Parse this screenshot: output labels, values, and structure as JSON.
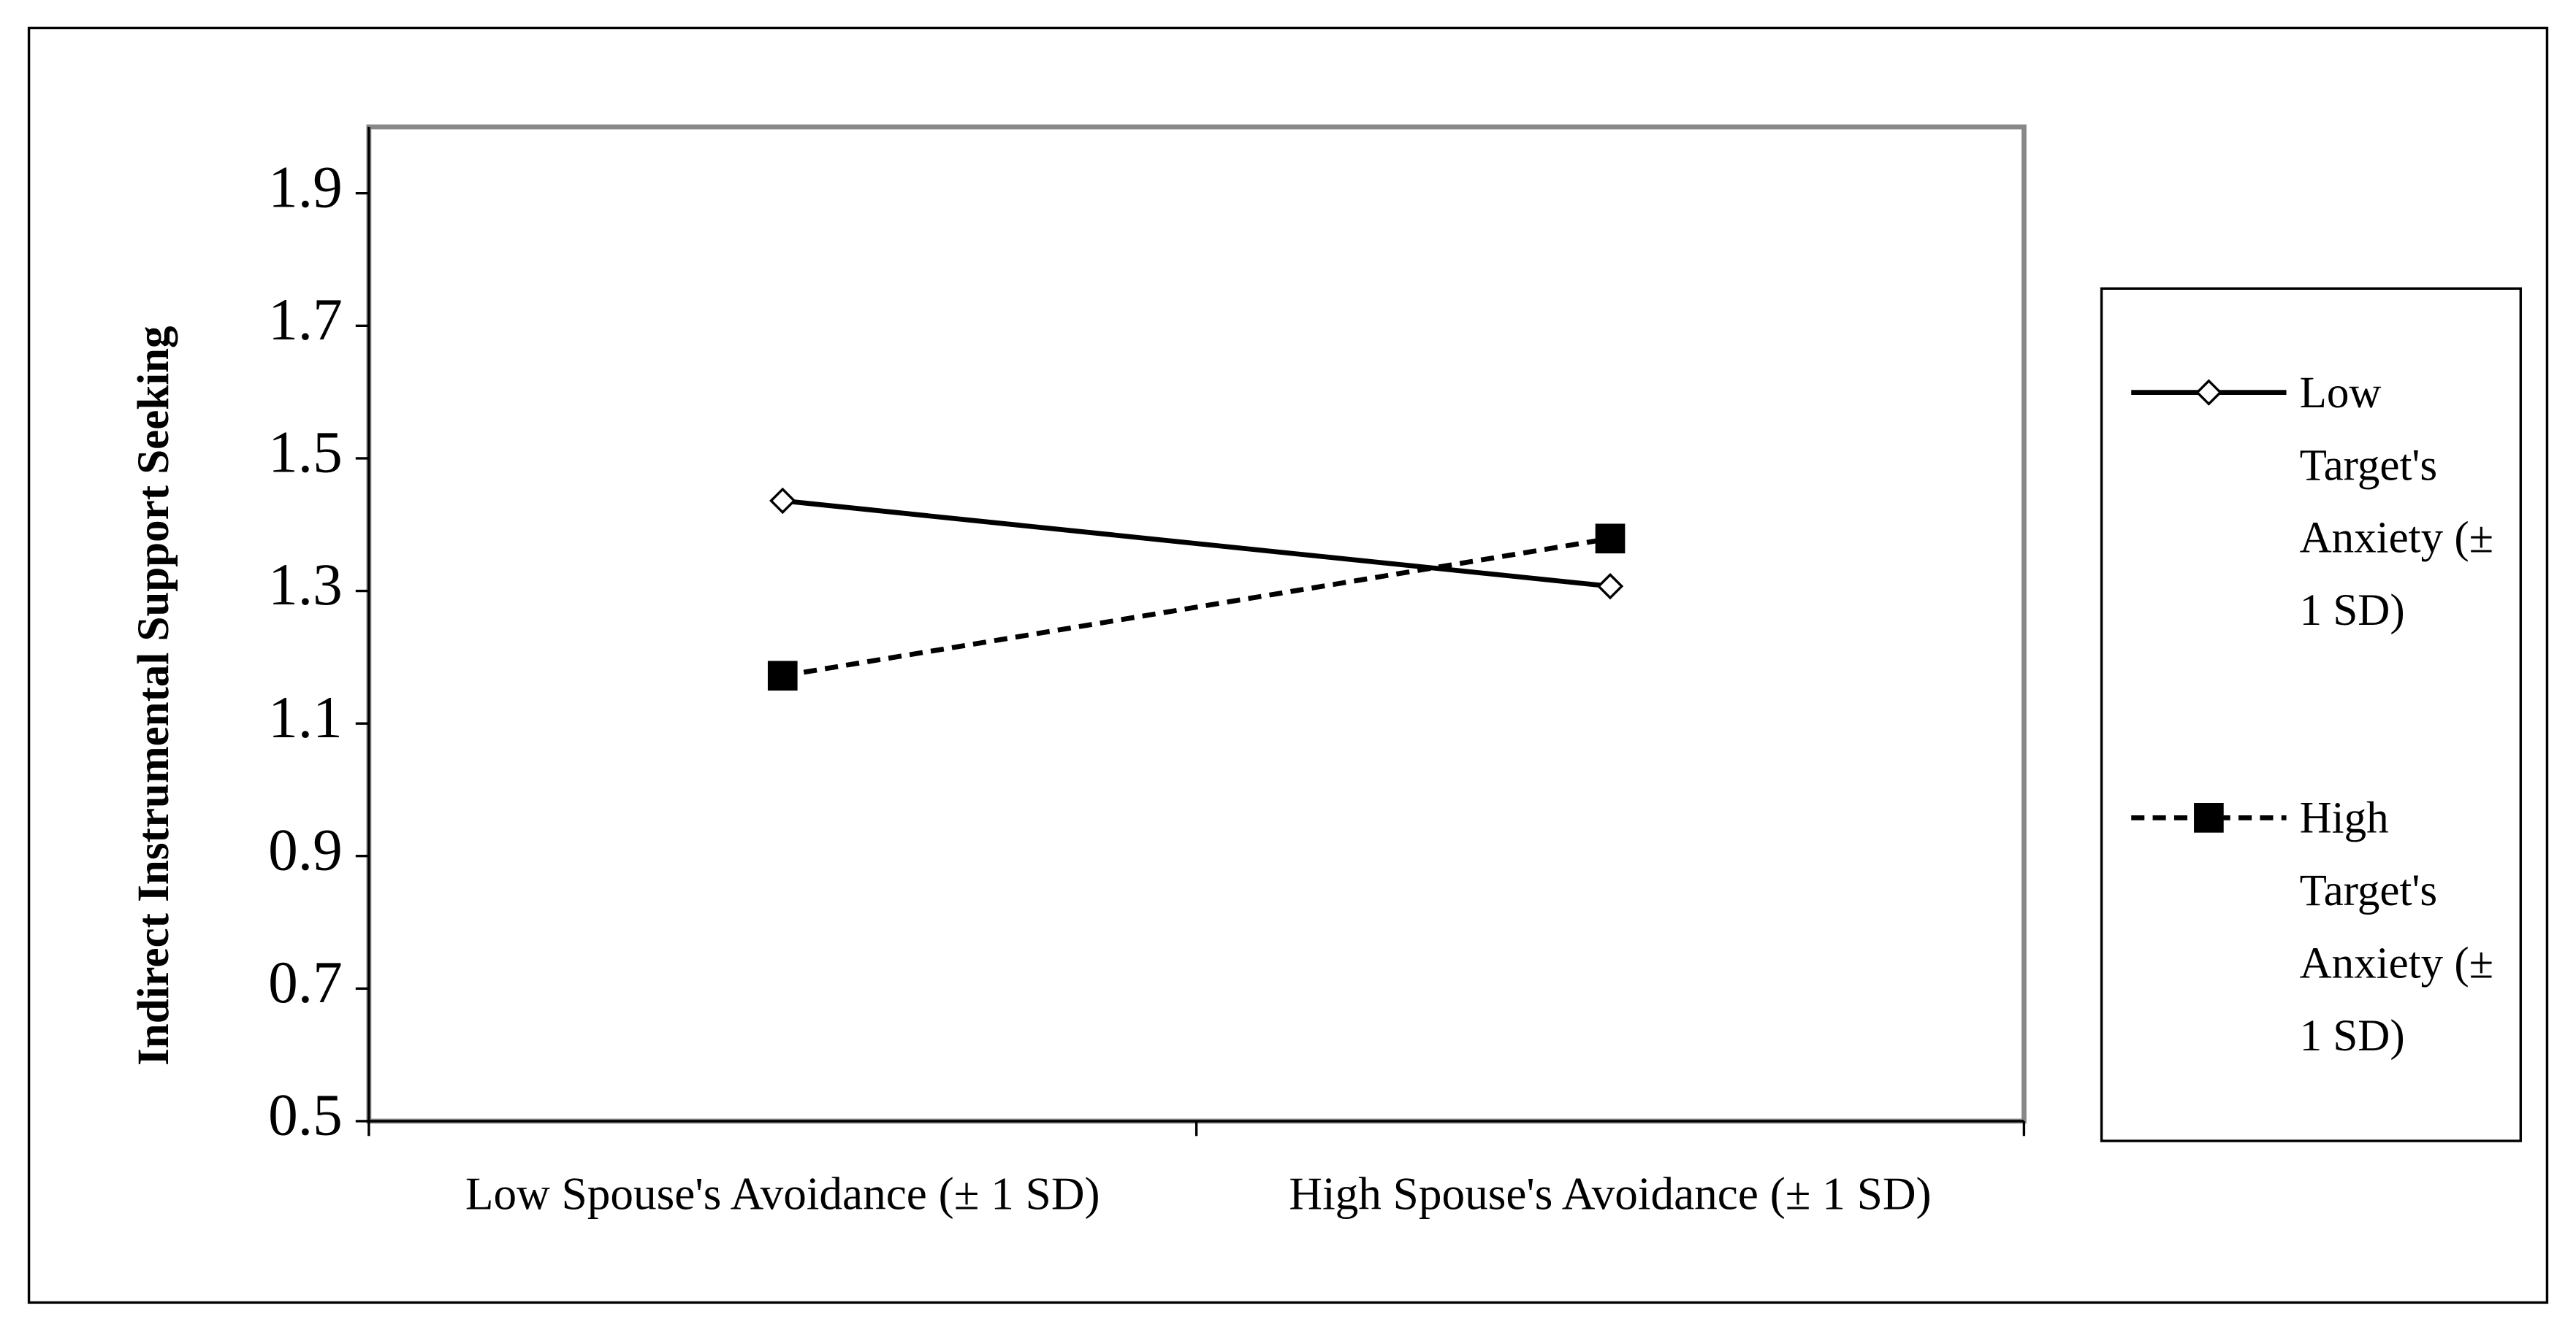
{
  "chart_data": {
    "type": "line",
    "y_label": "Indirect Instrumental Support Seeking",
    "categories": [
      "Low Spouse's Avoidance (± 1 SD)",
      "High Spouse's Avoidance (± 1 SD)"
    ],
    "series": [
      {
        "name": "Low Target's Anxiety (± 1 SD)",
        "color": "#000000",
        "line_style": "solid",
        "marker": "diamond",
        "values": [
          1.436,
          1.307
        ]
      },
      {
        "name": "High Target's Anxiety (± 1 SD)",
        "color": "#000000",
        "line_style": "dashed",
        "marker": "square",
        "values": [
          1.172,
          1.379
        ]
      }
    ],
    "ylim": [
      0.5,
      2.0
    ],
    "yticks": [
      0.5,
      0.7,
      0.9,
      1.1,
      1.3,
      1.5,
      1.7,
      1.9
    ],
    "grid": false,
    "legend": "right"
  }
}
